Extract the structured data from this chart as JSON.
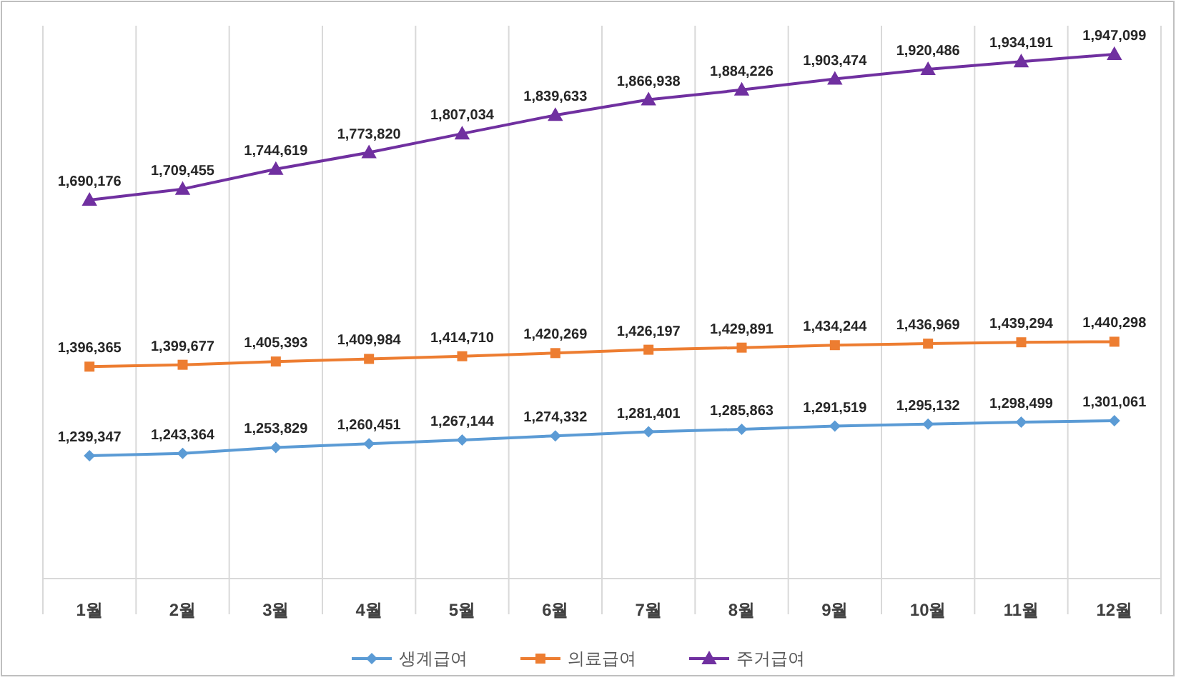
{
  "chart_data": {
    "type": "line",
    "categories": [
      "1월",
      "2월",
      "3월",
      "4월",
      "5월",
      "6월",
      "7월",
      "8월",
      "9월",
      "10월",
      "11월",
      "12월"
    ],
    "series": [
      {
        "name": "생계급여",
        "color": "#5b9bd5",
        "marker": "diamond",
        "values": [
          1239347,
          1243364,
          1253829,
          1260451,
          1267144,
          1274332,
          1281401,
          1285863,
          1291519,
          1295132,
          1298499,
          1301061
        ],
        "value_labels": [
          "1,239,347",
          "1,243,364",
          "1,253,829",
          "1,260,451",
          "1,267,144",
          "1,274,332",
          "1,281,401",
          "1,285,863",
          "1,291,519",
          "1,295,132",
          "1,298,499",
          "1,301,061"
        ]
      },
      {
        "name": "의료급여",
        "color": "#ed7d31",
        "marker": "square",
        "values": [
          1396365,
          1399677,
          1405393,
          1409984,
          1414710,
          1420269,
          1426197,
          1429891,
          1434244,
          1436969,
          1439294,
          1440298
        ],
        "value_labels": [
          "1,396,365",
          "1,399,677",
          "1,405,393",
          "1,409,984",
          "1,414,710",
          "1,420,269",
          "1,426,197",
          "1,429,891",
          "1,434,244",
          "1,436,969",
          "1,439,294",
          "1,440,298"
        ]
      },
      {
        "name": "주거급여",
        "color": "#7030a0",
        "marker": "triangle",
        "values": [
          1690176,
          1709455,
          1744619,
          1773820,
          1807034,
          1839633,
          1866938,
          1884226,
          1903474,
          1920486,
          1934191,
          1947099
        ],
        "value_labels": [
          "1,690,176",
          "1,709,455",
          "1,744,619",
          "1,773,820",
          "1,807,034",
          "1,839,633",
          "1,866,938",
          "1,884,226",
          "1,903,474",
          "1,920,486",
          "1,934,191",
          "1,947,099"
        ]
      }
    ],
    "grid": "x",
    "legend": "bottom"
  }
}
